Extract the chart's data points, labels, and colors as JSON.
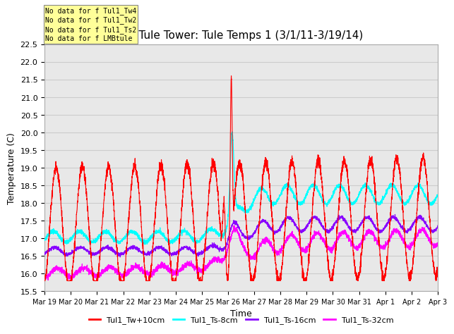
{
  "title": "MB Tule Tower: Tule Temps 1 (3/1/11-3/19/14)",
  "xlabel": "Time",
  "ylabel": "Temperature (C)",
  "ylim": [
    15.5,
    22.5
  ],
  "legend_labels": [
    "Tul1_Tw+10cm",
    "Tul1_Ts-8cm",
    "Tul1_Ts-16cm",
    "Tul1_Ts-32cm"
  ],
  "legend_colors": [
    "#ff0000",
    "#00ffff",
    "#8800ff",
    "#ff00ff"
  ],
  "no_data_texts": [
    "No data for f Tul1_Tw4",
    "No data for f Tul1_Tw2",
    "No data for f Tul1_Ts2",
    "No data for f LMBtule"
  ],
  "no_data_box_color": "#ffff99",
  "xtick_labels": [
    "Mar 19",
    "Mar 20",
    "Mar 21",
    "Mar 22",
    "Mar 23",
    "Mar 24",
    "Mar 25",
    "Mar 26",
    "Mar 27",
    "Mar 28",
    "Mar 29",
    "Mar 30",
    "Mar 31",
    "Apr 1",
    "Apr 2",
    "Apr 3"
  ],
  "grid_color": "#cccccc",
  "background_color": "#e8e8e8"
}
